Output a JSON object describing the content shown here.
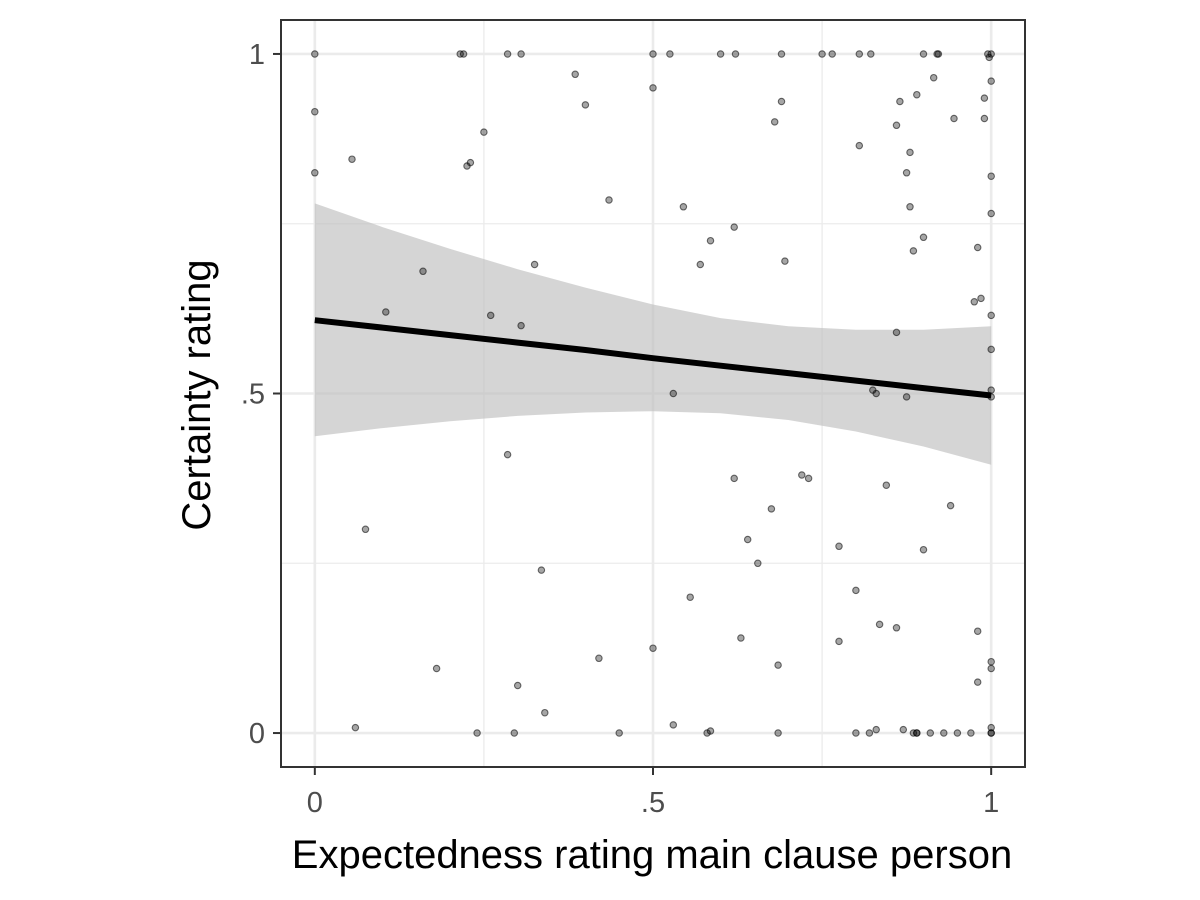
{
  "chart_data": {
    "type": "scatter",
    "xlabel": "Expectedness rating main clause person",
    "ylabel": "Certainty rating",
    "xlim": [
      -0.05,
      1.05
    ],
    "ylim": [
      -0.05,
      1.05
    ],
    "x_ticks": [
      {
        "value": 0,
        "label": "0"
      },
      {
        "value": 0.5,
        "label": ".5"
      },
      {
        "value": 1,
        "label": "1"
      }
    ],
    "y_ticks": [
      {
        "value": 0,
        "label": "0"
      },
      {
        "value": 0.5,
        "label": ".5"
      },
      {
        "value": 1,
        "label": "1"
      }
    ],
    "grid": true,
    "colors": {
      "point": "#000000",
      "fit_line": "#000000",
      "ribbon": "#bfbfbf",
      "grid": "#ebebeb",
      "panel_border": "#333333",
      "tick_text": "#4d4d4d"
    },
    "series": [
      {
        "kind": "points",
        "points": [
          [
            0,
            1
          ],
          [
            0.22,
            1
          ],
          [
            0.215,
            1
          ],
          [
            0.285,
            1
          ],
          [
            0.305,
            1
          ],
          [
            0.5,
            1
          ],
          [
            0.525,
            1
          ],
          [
            0.6,
            1
          ],
          [
            0.622,
            1
          ],
          [
            0.69,
            1
          ],
          [
            0.75,
            1
          ],
          [
            0.765,
            1
          ],
          [
            0.805,
            1
          ],
          [
            0.822,
            1
          ],
          [
            0.9,
            1
          ],
          [
            0.92,
            1
          ],
          [
            0.922,
            1
          ],
          [
            0.995,
            1
          ],
          [
            1,
            1
          ],
          [
            0.997,
            0.995
          ],
          [
            0,
            0.915
          ],
          [
            0,
            0.825
          ],
          [
            0.055,
            0.845
          ],
          [
            0.225,
            0.835
          ],
          [
            0.23,
            0.84
          ],
          [
            0.25,
            0.885
          ],
          [
            0.385,
            0.97
          ],
          [
            0.4,
            0.925
          ],
          [
            0.5,
            0.95
          ],
          [
            0.68,
            0.9
          ],
          [
            0.69,
            0.93
          ],
          [
            0.805,
            0.865
          ],
          [
            0.86,
            0.895
          ],
          [
            0.865,
            0.93
          ],
          [
            0.89,
            0.94
          ],
          [
            0.915,
            0.965
          ],
          [
            0.945,
            0.905
          ],
          [
            0.99,
            0.935
          ],
          [
            0.99,
            0.905
          ],
          [
            1,
            0.96
          ],
          [
            0.875,
            0.825
          ],
          [
            0.88,
            0.855
          ],
          [
            0.88,
            0.775
          ],
          [
            0.9,
            0.73
          ],
          [
            0.885,
            0.71
          ],
          [
            0.98,
            0.715
          ],
          [
            1,
            0.82
          ],
          [
            1,
            0.765
          ],
          [
            0.975,
            0.635
          ],
          [
            0.985,
            0.64
          ],
          [
            1,
            0.615
          ],
          [
            1,
            0.565
          ],
          [
            1,
            0.505
          ],
          [
            1,
            0.495
          ],
          [
            0.86,
            0.59
          ],
          [
            0.16,
            0.68
          ],
          [
            0.105,
            0.62
          ],
          [
            0.26,
            0.615
          ],
          [
            0.305,
            0.6
          ],
          [
            0.325,
            0.69
          ],
          [
            0.435,
            0.785
          ],
          [
            0.545,
            0.775
          ],
          [
            0.585,
            0.725
          ],
          [
            0.57,
            0.69
          ],
          [
            0.62,
            0.745
          ],
          [
            0.695,
            0.695
          ],
          [
            0.53,
            0.5
          ],
          [
            0.825,
            0.505
          ],
          [
            0.83,
            0.5
          ],
          [
            0.875,
            0.495
          ],
          [
            0.285,
            0.41
          ],
          [
            0.62,
            0.375
          ],
          [
            0.72,
            0.38
          ],
          [
            0.73,
            0.375
          ],
          [
            0.845,
            0.365
          ],
          [
            0.94,
            0.335
          ],
          [
            0.675,
            0.33
          ],
          [
            0.075,
            0.3
          ],
          [
            0.64,
            0.285
          ],
          [
            0.775,
            0.275
          ],
          [
            0.9,
            0.27
          ],
          [
            0.335,
            0.24
          ],
          [
            0.655,
            0.25
          ],
          [
            0.555,
            0.2
          ],
          [
            0.8,
            0.21
          ],
          [
            0.835,
            0.16
          ],
          [
            0.86,
            0.155
          ],
          [
            0.98,
            0.15
          ],
          [
            0.63,
            0.14
          ],
          [
            0.775,
            0.135
          ],
          [
            0.5,
            0.125
          ],
          [
            0.42,
            0.11
          ],
          [
            0.18,
            0.095
          ],
          [
            0.685,
            0.1
          ],
          [
            1,
            0.105
          ],
          [
            1,
            0.095
          ],
          [
            0.98,
            0.075
          ],
          [
            0.3,
            0.07
          ],
          [
            0.34,
            0.03
          ],
          [
            0.06,
            0.008
          ],
          [
            0.24,
            0
          ],
          [
            0.295,
            0
          ],
          [
            0.45,
            0
          ],
          [
            0.53,
            0.012
          ],
          [
            0.58,
            0
          ],
          [
            0.585,
            0.003
          ],
          [
            0.685,
            0
          ],
          [
            0.8,
            0
          ],
          [
            0.82,
            0
          ],
          [
            0.83,
            0.005
          ],
          [
            0.87,
            0.005
          ],
          [
            0.885,
            0
          ],
          [
            0.89,
            0
          ],
          [
            0.89,
            0
          ],
          [
            0.91,
            0
          ],
          [
            0.93,
            0
          ],
          [
            0.95,
            0
          ],
          [
            0.97,
            0
          ],
          [
            1,
            0.008
          ],
          [
            1,
            0
          ],
          [
            1,
            0
          ]
        ]
      },
      {
        "kind": "fit_line",
        "x": [
          0,
          0.1,
          0.2,
          0.3,
          0.4,
          0.5,
          0.6,
          0.7,
          0.8,
          0.9,
          1.0
        ],
        "y": [
          0.608,
          0.597,
          0.586,
          0.575,
          0.564,
          0.552,
          0.541,
          0.53,
          0.519,
          0.508,
          0.497
        ]
      },
      {
        "kind": "confidence_band",
        "x": [
          0,
          0.1,
          0.2,
          0.3,
          0.4,
          0.5,
          0.6,
          0.7,
          0.8,
          0.9,
          1.0
        ],
        "lower": [
          0.437,
          0.449,
          0.459,
          0.467,
          0.472,
          0.474,
          0.471,
          0.461,
          0.444,
          0.422,
          0.395
        ],
        "upper": [
          0.78,
          0.745,
          0.713,
          0.683,
          0.656,
          0.631,
          0.611,
          0.599,
          0.594,
          0.594,
          0.599
        ]
      }
    ]
  }
}
